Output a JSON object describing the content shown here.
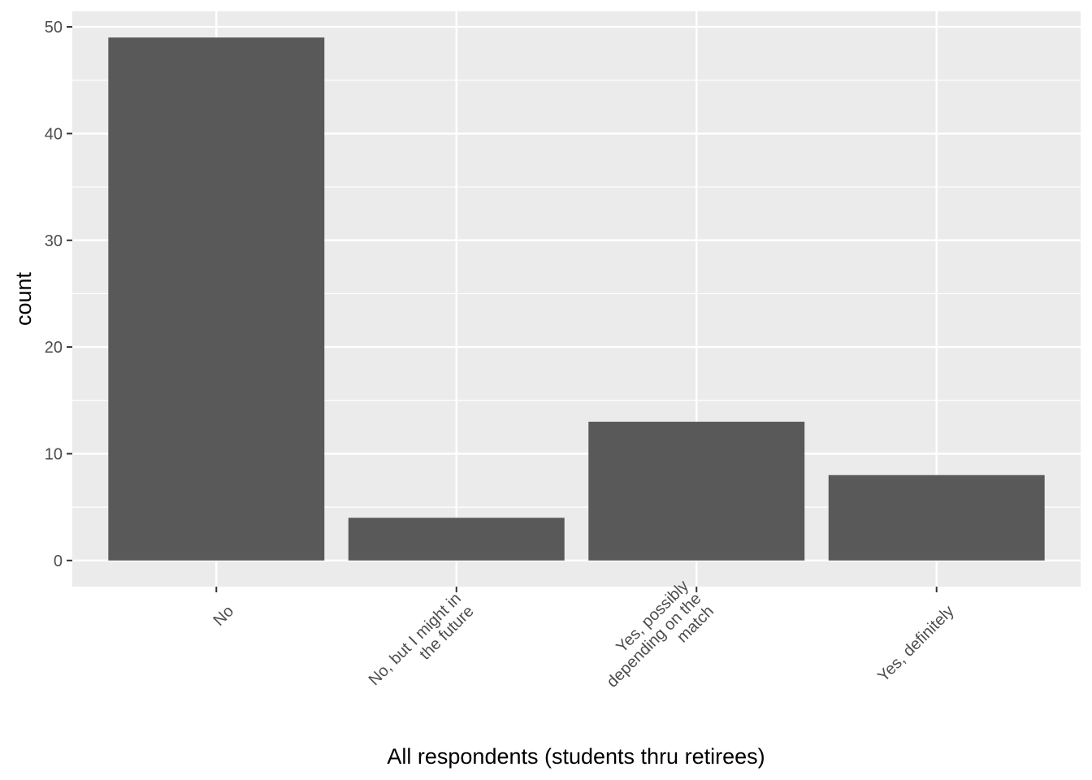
{
  "chart_data": {
    "type": "bar",
    "categories": [
      [
        "No"
      ],
      [
        "No, but I might in",
        "the future"
      ],
      [
        "Yes, possibly",
        "depending on the",
        "match"
      ],
      [
        "Yes, definitely"
      ]
    ],
    "values": [
      49,
      4,
      13,
      8
    ],
    "xlabel": "All respondents (students thru retirees)",
    "ylabel": "count",
    "ylim": [
      -2.45,
      51.45
    ],
    "yticks": [
      0,
      10,
      20,
      30,
      40,
      50
    ],
    "grid": true,
    "legend": "none",
    "colors": {
      "bar": "#595959",
      "panel": "#ebebeb",
      "grid": "#ffffff",
      "tick_label": "#4d4d4d",
      "tick_mark": "#333333"
    }
  }
}
